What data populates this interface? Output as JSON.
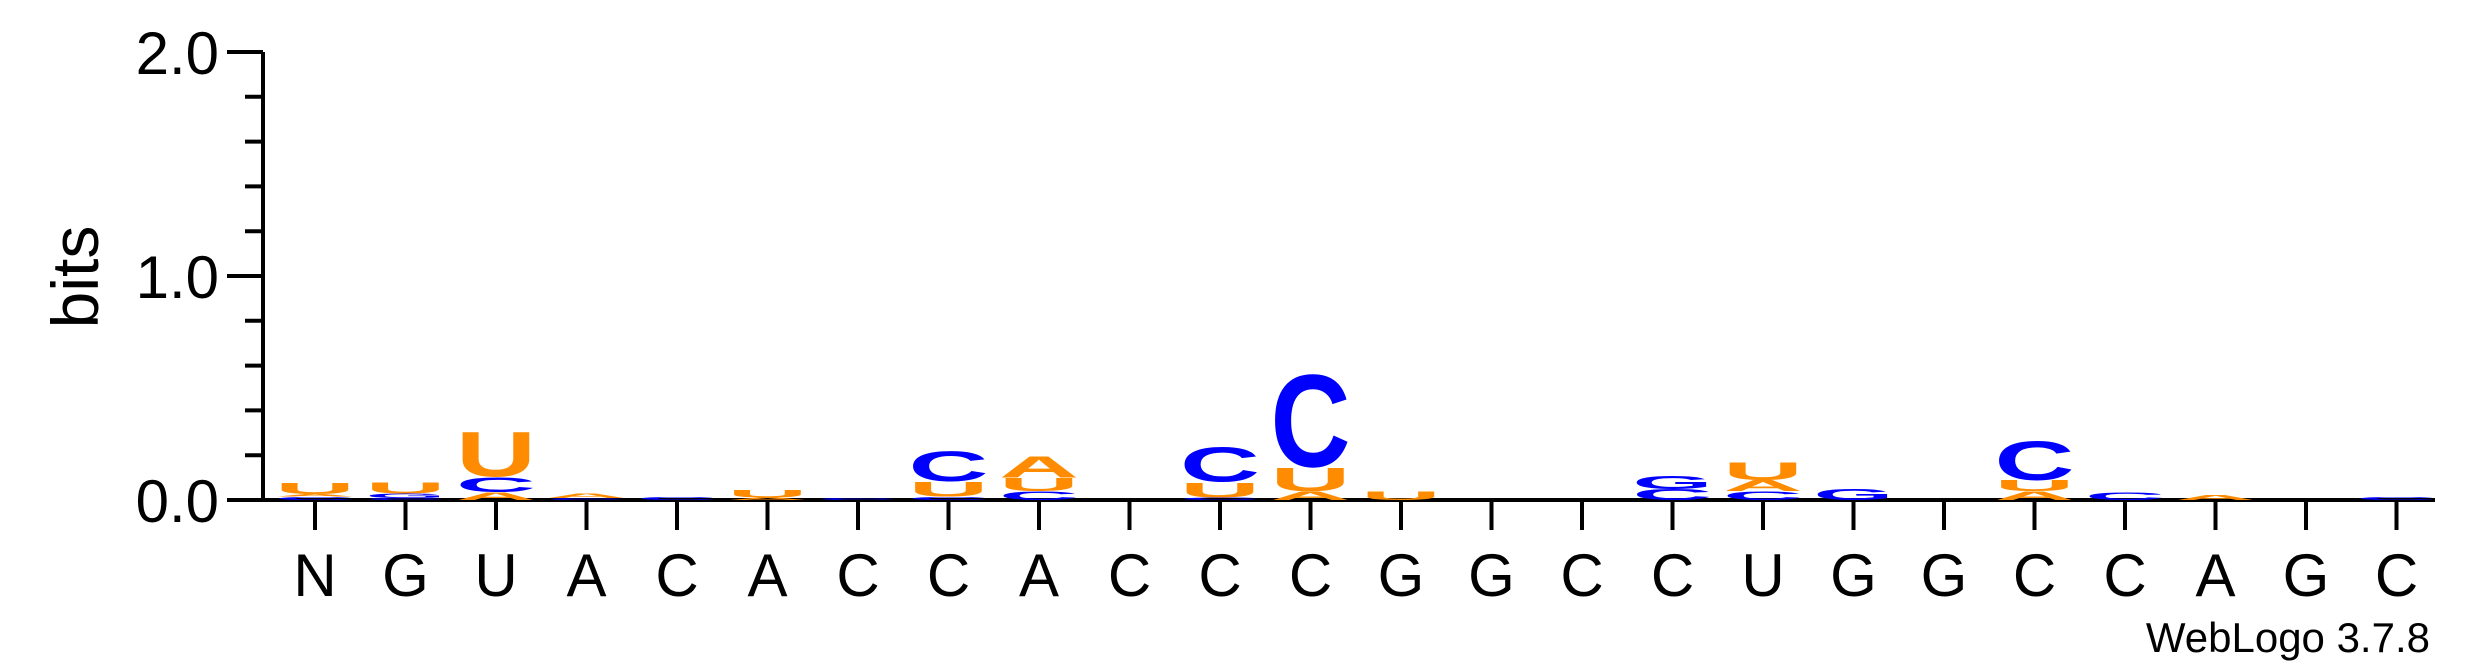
{
  "chart_data": {
    "type": "sequence-logo",
    "ylabel": "bits",
    "ylim": [
      0,
      2.0
    ],
    "yticks": [
      "0.0",
      "1.0",
      "2.0"
    ],
    "categories": [
      "N",
      "G",
      "U",
      "A",
      "C",
      "A",
      "C",
      "C",
      "A",
      "C",
      "C",
      "C",
      "G",
      "G",
      "C",
      "C",
      "U",
      "G",
      "G",
      "C",
      "C",
      "A",
      "G",
      "C"
    ],
    "colors": {
      "C": "#0000ff",
      "G": "#0000ff",
      "A": "#ff8c00",
      "U": "#ff8c00"
    },
    "positions": [
      {
        "label": "N",
        "stack": [
          [
            "C",
            0.015
          ],
          [
            "A",
            0.012
          ],
          [
            "U",
            0.05
          ]
        ]
      },
      {
        "label": "G",
        "stack": [
          [
            "C",
            0.008
          ],
          [
            "G",
            0.02
          ],
          [
            "U",
            0.05
          ]
        ]
      },
      {
        "label": "U",
        "stack": [
          [
            "A",
            0.035
          ],
          [
            "C",
            0.07
          ],
          [
            "U",
            0.21
          ]
        ]
      },
      {
        "label": "A",
        "stack": [
          [
            "C",
            0.008
          ],
          [
            "A",
            0.02
          ]
        ]
      },
      {
        "label": "C",
        "stack": [
          [
            "C",
            0.015
          ]
        ]
      },
      {
        "label": "A",
        "stack": [
          [
            "A",
            0.012
          ],
          [
            "U",
            0.035
          ]
        ]
      },
      {
        "label": "C",
        "stack": [
          [
            "C",
            0.01
          ]
        ]
      },
      {
        "label": "C",
        "stack": [
          [
            "C",
            0.015
          ],
          [
            "U",
            0.07
          ],
          [
            "C",
            0.14
          ]
        ]
      },
      {
        "label": "A",
        "stack": [
          [
            "C",
            0.04
          ],
          [
            "U",
            0.06
          ],
          [
            "A",
            0.1
          ]
        ]
      },
      {
        "label": "C",
        "stack": []
      },
      {
        "label": "C",
        "stack": [
          [
            "C",
            0.012
          ],
          [
            "U",
            0.07
          ],
          [
            "C",
            0.16
          ]
        ]
      },
      {
        "label": "C",
        "stack": [
          [
            "A",
            0.04
          ],
          [
            "U",
            0.11
          ],
          [
            "C",
            0.43
          ]
        ]
      },
      {
        "label": "G",
        "stack": [
          [
            "U",
            0.04
          ]
        ]
      },
      {
        "label": "G",
        "stack": []
      },
      {
        "label": "C",
        "stack": []
      },
      {
        "label": "C",
        "stack": [
          [
            "C",
            0.05
          ],
          [
            "G",
            0.06
          ]
        ]
      },
      {
        "label": "U",
        "stack": [
          [
            "C",
            0.04
          ],
          [
            "A",
            0.05
          ],
          [
            "U",
            0.08
          ]
        ]
      },
      {
        "label": "G",
        "stack": [
          [
            "G",
            0.05
          ]
        ]
      },
      {
        "label": "G",
        "stack": []
      },
      {
        "label": "C",
        "stack": [
          [
            "A",
            0.04
          ],
          [
            "U",
            0.05
          ],
          [
            "C",
            0.18
          ]
        ]
      },
      {
        "label": "C",
        "stack": [
          [
            "C",
            0.035
          ]
        ]
      },
      {
        "label": "A",
        "stack": [
          [
            "A",
            0.025
          ]
        ]
      },
      {
        "label": "G",
        "stack": []
      },
      {
        "label": "C",
        "stack": [
          [
            "C",
            0.015
          ]
        ]
      }
    ]
  },
  "footer": {
    "credit": "WebLogo 3.7.8"
  }
}
